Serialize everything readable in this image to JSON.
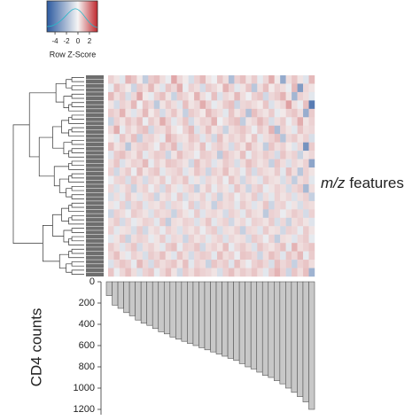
{
  "chart_data": [
    {
      "type": "heatmap",
      "colorbar_label": "Row Z-Score",
      "zlim": [
        -5.4,
        3.4
      ],
      "zticks": [
        -4,
        -2,
        0,
        2
      ],
      "colors": [
        "#2c5aa0",
        "#f5f5f5",
        "#c0282d"
      ],
      "ylabel_italic": "m/z",
      "ylabel_rest": "features",
      "values": [
        [
          0.6,
          0.3,
          -0.5,
          1.1,
          0.8,
          0.2,
          -1.4,
          0.7,
          0.9,
          0.4,
          -0.3,
          1.3,
          0.5,
          0.2,
          -0.8,
          0.6,
          1.0,
          0.3,
          -0.2,
          0.8,
          0.4,
          -1.9,
          0.6,
          0.9,
          0.3,
          0.7,
          -0.4,
          0.5,
          1.2,
          0.2,
          -2.6,
          0.4,
          0.8,
          0.3,
          -0.6,
          1.0
        ],
        [
          -0.4,
          0.9,
          0.5,
          0.2,
          -1.1,
          0.7,
          0.4,
          1.0,
          0.3,
          -0.6,
          0.8,
          0.5,
          1.2,
          -0.3,
          0.6,
          0.4,
          -0.9,
          0.7,
          0.5,
          0.2,
          1.1,
          0.6,
          -0.5,
          0.3,
          0.8,
          -1.6,
          0.4,
          0.9,
          0.2,
          0.6,
          0.4,
          -0.3,
          1.0,
          -3.1,
          0.5,
          0.3
        ],
        [
          1.0,
          0.4,
          0.7,
          -0.8,
          0.5,
          1.3,
          0.2,
          -0.4,
          0.6,
          0.9,
          0.3,
          -1.2,
          0.7,
          0.5,
          0.2,
          1.1,
          0.4,
          -0.3,
          0.9,
          -0.7,
          0.5,
          0.3,
          1.0,
          0.4,
          -0.2,
          0.6,
          0.8,
          -1.0,
          0.5,
          0.7,
          1.1,
          0.3,
          -2.2,
          0.6,
          0.4,
          -0.5
        ],
        [
          0.3,
          -0.9,
          0.6,
          0.4,
          1.0,
          -0.2,
          0.8,
          0.5,
          -1.5,
          0.3,
          0.7,
          0.4,
          -0.6,
          0.9,
          0.3,
          0.5,
          1.2,
          0.6,
          -0.4,
          0.3,
          0.7,
          0.9,
          -1.1,
          0.5,
          0.6,
          0.4,
          0.2,
          0.8,
          -0.7,
          0.3,
          0.5,
          1.4,
          0.4,
          -0.3,
          0.9,
          -4.2
        ],
        [
          0.7,
          0.5,
          1.1,
          0.3,
          -0.6,
          0.4,
          1.0,
          0.2,
          0.6,
          -0.9,
          0.4,
          0.8,
          0.3,
          -1.3,
          0.7,
          0.5,
          0.2,
          1.0,
          0.6,
          0.4,
          -0.5,
          0.8,
          0.3,
          0.6,
          -1.8,
          0.9,
          0.5,
          0.3,
          0.7,
          -0.4,
          0.2,
          0.6,
          0.8,
          0.4,
          -2.5,
          0.7
        ],
        [
          -1.2,
          0.6,
          0.3,
          0.8,
          0.5,
          0.9,
          -0.3,
          0.7,
          0.4,
          1.2,
          0.6,
          -0.5,
          0.4,
          0.8,
          -0.9,
          0.3,
          0.6,
          0.5,
          1.1,
          -0.2,
          0.4,
          0.7,
          0.9,
          -1.4,
          0.3,
          0.5,
          1.0,
          0.6,
          -0.8,
          0.4,
          0.7,
          -0.3,
          0.5,
          1.2,
          0.3,
          0.6
        ],
        [
          0.5,
          1.2,
          -0.4,
          0.6,
          0.3,
          0.7,
          0.9,
          -1.0,
          0.5,
          0.4,
          0.8,
          0.3,
          -0.2,
          0.6,
          1.0,
          -0.7,
          0.4,
          0.9,
          0.3,
          0.5,
          -1.2,
          0.4,
          0.6,
          0.8,
          0.5,
          -0.3,
          0.7,
          0.4,
          1.1,
          -2.0,
          0.6,
          0.3,
          -0.5,
          0.8,
          0.4,
          0.5
        ],
        [
          0.2,
          -0.5,
          0.8,
          0.4,
          0.9,
          -1.3,
          0.5,
          0.6,
          0.3,
          -0.4,
          1.1,
          0.7,
          0.4,
          0.3,
          0.8,
          0.6,
          -0.6,
          0.5,
          -1.0,
          0.9,
          0.3,
          0.6,
          0.4,
          0.7,
          0.2,
          0.8,
          -0.5,
          0.4,
          0.6,
          0.9,
          -1.7,
          0.5,
          0.7,
          0.3,
          0.6,
          -0.8
        ],
        [
          0.9,
          0.3,
          0.5,
          -1.6,
          0.4,
          0.6,
          0.7,
          0.4,
          -0.3,
          0.8,
          0.5,
          1.0,
          -0.8,
          0.4,
          0.6,
          0.3,
          0.9,
          -0.4,
          0.5,
          0.7,
          0.4,
          -0.9,
          0.6,
          0.3,
          1.0,
          0.5,
          0.3,
          -1.4,
          0.8,
          0.4,
          0.6,
          0.2,
          -0.6,
          0.5,
          -3.4,
          0.7
        ],
        [
          -0.6,
          0.7,
          0.9,
          0.5,
          0.3,
          0.8,
          -0.5,
          0.4,
          0.7,
          0.6,
          -1.1,
          0.3,
          0.9,
          0.5,
          0.4,
          -0.3,
          0.7,
          0.6,
          0.4,
          -1.5,
          0.8,
          0.5,
          0.3,
          0.9,
          -0.4,
          0.6,
          0.4,
          0.7,
          0.5,
          -0.9,
          0.8,
          0.4,
          0.6,
          -1.2,
          0.3,
          0.5
        ],
        [
          0.4,
          0.8,
          -0.7,
          0.3,
          0.6,
          0.5,
          1.0,
          -0.4,
          0.6,
          0.3,
          0.8,
          0.7,
          0.5,
          0.3,
          -1.0,
          0.9,
          0.4,
          0.6,
          -0.6,
          0.3,
          0.7,
          0.5,
          -0.8,
          0.4,
          0.9,
          0.6,
          0.3,
          0.5,
          -1.3,
          0.8,
          0.4,
          -0.7,
          0.5,
          0.3,
          0.6,
          -2.8
        ],
        [
          0.6,
          -1.0,
          0.4,
          0.7,
          -0.3,
          0.9,
          0.3,
          0.6,
          0.8,
          -0.5,
          0.4,
          0.5,
          0.7,
          -0.6,
          0.3,
          0.8,
          0.5,
          -1.1,
          0.6,
          0.4,
          0.9,
          0.3,
          0.5,
          -0.4,
          0.7,
          -0.9,
          0.6,
          0.4,
          0.3,
          0.7,
          -0.5,
          0.9,
          0.4,
          -1.6,
          0.6,
          0.3
        ],
        [
          -0.3,
          0.5,
          0.6,
          -0.8,
          0.7,
          0.4,
          -0.9,
          0.5,
          0.3,
          0.7,
          -0.4,
          0.6,
          0.4,
          0.8,
          -0.5,
          0.3,
          -0.7,
          0.5,
          0.3,
          0.6,
          -0.3,
          0.8,
          0.4,
          -1.0,
          0.5,
          0.3,
          -0.6,
          0.7,
          0.4,
          0.3,
          -0.8,
          0.5,
          -1.4,
          0.4,
          0.6,
          -0.5
        ],
        [
          0.5,
          -0.7,
          0.3,
          0.6,
          -1.2,
          0.4,
          0.6,
          -0.3,
          0.5,
          -0.9,
          0.7,
          0.3,
          -0.5,
          0.4,
          0.6,
          -1.3,
          0.3,
          0.7,
          -0.4,
          0.5,
          0.3,
          -0.6,
          0.8,
          0.4,
          -1.1,
          0.5,
          0.7,
          -0.4,
          0.3,
          0.6,
          0.4,
          -0.9,
          0.5,
          0.7,
          -2.1,
          0.4
        ],
        [
          -0.8,
          0.4,
          -0.5,
          0.7,
          0.3,
          -0.6,
          0.4,
          0.6,
          -1.1,
          0.3,
          0.5,
          -0.4,
          0.7,
          -0.8,
          0.4,
          0.3,
          0.6,
          -0.5,
          0.5,
          -1.2,
          0.4,
          0.6,
          -0.3,
          0.5,
          0.3,
          0.7,
          -0.9,
          0.4,
          -0.5,
          0.6,
          0.3,
          0.5,
          -0.7,
          0.4,
          0.6,
          -1.3
        ],
        [
          0.3,
          -0.4,
          0.6,
          -1.0,
          0.5,
          0.7,
          -0.6,
          0.4,
          0.3,
          0.6,
          -0.8,
          0.5,
          0.4,
          -0.3,
          0.7,
          -0.9,
          0.5,
          0.3,
          -1.3,
          0.6,
          0.4,
          0.5,
          -0.5,
          0.7,
          0.4,
          -0.6,
          0.3,
          0.8,
          -1.1,
          0.5,
          0.6,
          -0.4,
          0.3,
          -0.8,
          0.5,
          0.4
        ],
        [
          -1.1,
          0.6,
          0.4,
          -0.3,
          0.7,
          0.5,
          0.3,
          -0.7,
          0.6,
          0.4,
          0.5,
          -1.2,
          0.6,
          0.3,
          -0.4,
          0.7,
          -0.6,
          0.4,
          0.5,
          0.3,
          -0.9,
          0.6,
          0.4,
          -0.5,
          0.7,
          0.4,
          0.3,
          -1.5,
          0.6,
          0.5,
          -0.3,
          0.4,
          0.7,
          0.5,
          -0.9,
          0.6
        ],
        [
          0.4,
          0.7,
          -0.9,
          0.5,
          -0.4,
          0.3,
          0.6,
          0.5,
          -0.5,
          0.7,
          -1.4,
          0.4,
          0.3,
          0.6,
          0.5,
          -0.7,
          0.4,
          0.8,
          -0.5,
          0.4,
          0.6,
          -1.0,
          0.3,
          0.5,
          -0.4,
          0.6,
          0.5,
          0.3,
          0.7,
          -0.8,
          0.5,
          -1.2,
          0.4,
          0.6,
          0.3,
          -0.6
        ],
        [
          0.6,
          -0.5,
          0.3,
          0.4,
          -0.8,
          0.7,
          -1.0,
          0.3,
          0.5,
          -0.4,
          0.6,
          0.4,
          -0.7,
          0.5,
          0.3,
          0.6,
          -0.3,
          0.5,
          0.7,
          -0.8,
          0.4,
          0.3,
          0.6,
          -1.3,
          0.5,
          0.4,
          -0.6,
          0.7,
          0.3,
          0.4,
          -1.0,
          0.6,
          0.5,
          -0.4,
          0.7,
          0.3
        ],
        [
          -0.5,
          0.3,
          0.7,
          -1.2,
          0.4,
          0.6,
          0.5,
          -0.4,
          0.3,
          0.7,
          -0.6,
          0.5,
          0.4,
          -1.1,
          0.6,
          0.3,
          0.5,
          -0.5,
          0.4,
          0.6,
          -0.7,
          0.5,
          0.3,
          0.4,
          -0.9,
          0.7,
          0.5,
          -0.3,
          0.6,
          -1.4,
          0.4,
          0.3,
          -0.6,
          0.5,
          0.7,
          -0.4
        ],
        [
          0.7,
          0.4,
          -0.6,
          0.5,
          0.8,
          -0.9,
          0.4,
          0.6,
          0.3,
          -0.5,
          0.7,
          0.9,
          -0.4,
          0.6,
          0.5,
          0.8,
          -1.0,
          0.4,
          0.6,
          0.3,
          0.9,
          -0.4,
          0.5,
          0.7,
          0.4,
          -0.7,
          0.8,
          0.5,
          0.3,
          0.6,
          0.9,
          -0.5,
          1.1,
          0.4,
          0.6,
          0.8
        ],
        [
          0.5,
          0.9,
          0.3,
          -0.4,
          0.6,
          0.4,
          -0.8,
          0.7,
          0.5,
          0.9,
          0.3,
          -0.6,
          0.8,
          0.4,
          -0.9,
          0.5,
          0.7,
          0.6,
          -0.5,
          0.9,
          0.4,
          0.6,
          -0.3,
          0.8,
          0.7,
          0.5,
          -1.1,
          0.4,
          0.9,
          0.6,
          -0.6,
          0.8,
          0.5,
          1.0,
          -0.4,
          0.7
        ],
        [
          -0.7,
          0.5,
          0.8,
          0.6,
          -0.4,
          1.0,
          0.5,
          -0.9,
          0.7,
          0.4,
          0.6,
          0.8,
          0.3,
          0.9,
          -0.5,
          0.6,
          0.4,
          -1.2,
          0.8,
          0.5,
          0.7,
          -0.6,
          0.9,
          0.4,
          -0.3,
          0.6,
          0.8,
          0.5,
          -0.8,
          0.9,
          0.5,
          0.7,
          -1.3,
          0.6,
          0.8,
          0.4
        ],
        [
          0.8,
          -0.3,
          0.5,
          0.9,
          0.4,
          -0.7,
          0.6,
          0.8,
          -0.4,
          0.5,
          0.9,
          0.3,
          -1.0,
          0.7,
          0.4,
          0.8,
          0.6,
          0.5,
          0.3,
          -0.8,
          0.6,
          0.9,
          0.4,
          0.7,
          0.5,
          0.8,
          0.4,
          -0.5,
          0.7,
          1.1,
          0.6,
          -1.1,
          0.8,
          0.4,
          0.9,
          -2.3
        ]
      ]
    },
    {
      "type": "bar",
      "ylabel": "CD4 counts",
      "values": [
        130,
        220,
        250,
        290,
        320,
        360,
        390,
        410,
        440,
        470,
        490,
        520,
        540,
        560,
        580,
        600,
        620,
        640,
        660,
        680,
        700,
        720,
        740,
        770,
        800,
        820,
        850,
        880,
        900,
        930,
        960,
        1000,
        1040,
        1080,
        1130,
        1200
      ],
      "color": "#c8c8c8",
      "inverted": true,
      "ylim": [
        0,
        1250
      ],
      "yticks": [
        0,
        200,
        400,
        600,
        800,
        1000,
        1200
      ]
    }
  ]
}
